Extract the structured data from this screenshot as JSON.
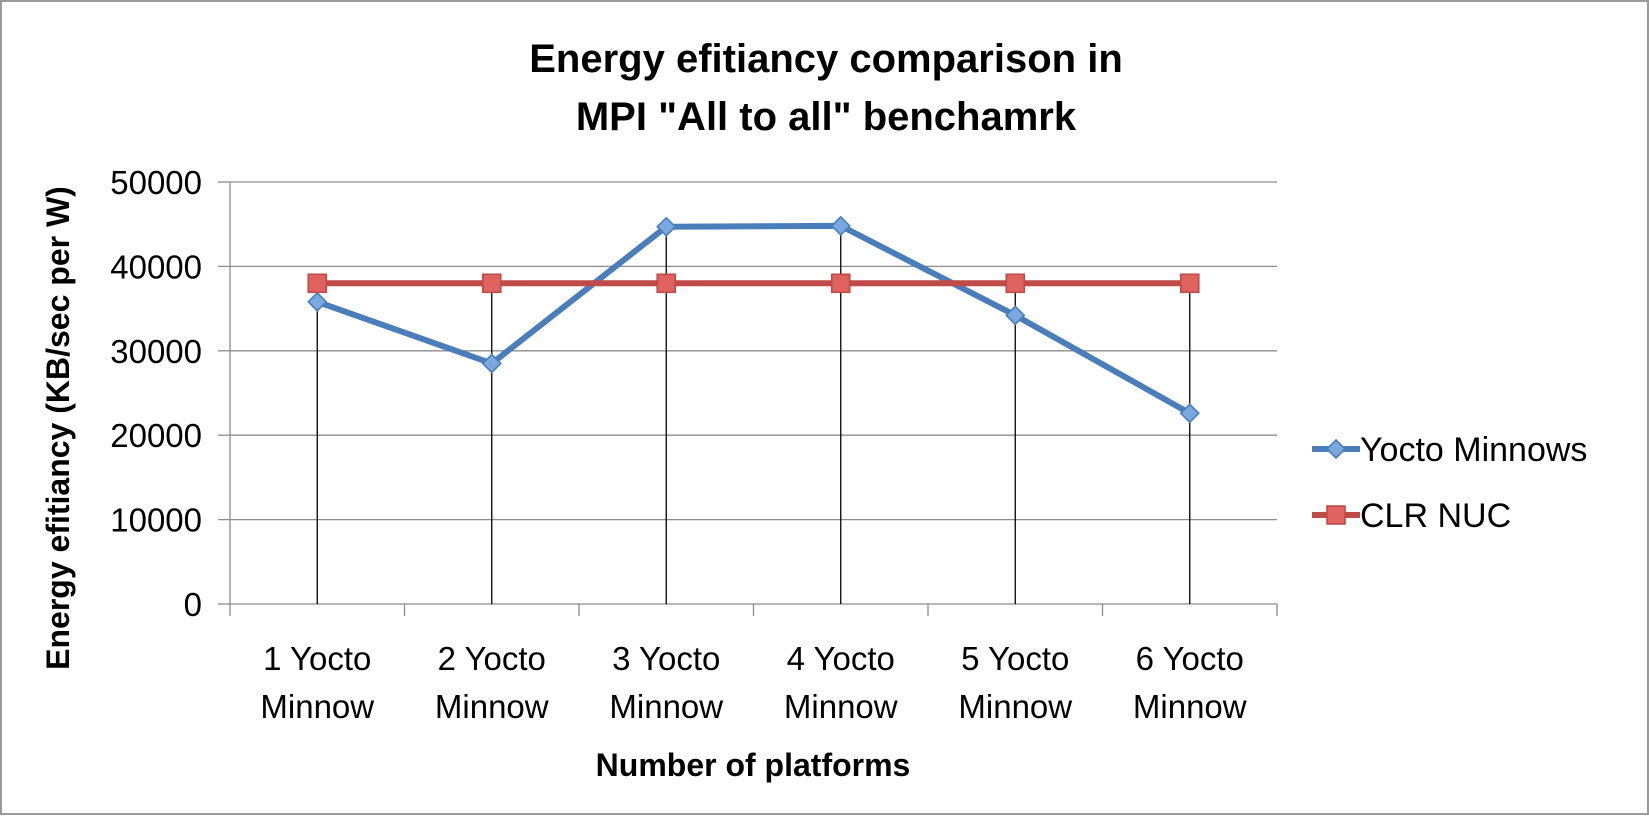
{
  "chart_data": {
    "type": "line",
    "title": [
      "Energy efitiancy comparison in",
      "MPI \"All to all\" benchamrk"
    ],
    "xlabel": "Number of platforms",
    "ylabel": "Energy efitiancy (KB/sec per W)",
    "categories": [
      [
        "1 Yocto",
        "Minnow"
      ],
      [
        "2 Yocto",
        "Minnow"
      ],
      [
        "3 Yocto",
        "Minnow"
      ],
      [
        "4 Yocto",
        "Minnow"
      ],
      [
        "5 Yocto",
        "Minnow"
      ],
      [
        "6 Yocto",
        "Minnow"
      ]
    ],
    "ylim": [
      0,
      50000
    ],
    "yticks": [
      "0",
      "10000",
      "20000",
      "30000",
      "40000",
      "50000"
    ],
    "grid": true,
    "drop_lines": true,
    "legend_position": "right",
    "series": [
      {
        "name": "Yocto Minnows",
        "values": [
          35800,
          28500,
          44700,
          44800,
          34200,
          22600
        ],
        "color": "#4a7ebb",
        "marker": "diamond",
        "marker_fill": "#7aa9e0"
      },
      {
        "name": "CLR NUC",
        "values": [
          38000,
          38000,
          38000,
          38000,
          38000,
          38000
        ],
        "color": "#be4b48",
        "marker": "square",
        "marker_fill": "#e0625f"
      }
    ]
  }
}
